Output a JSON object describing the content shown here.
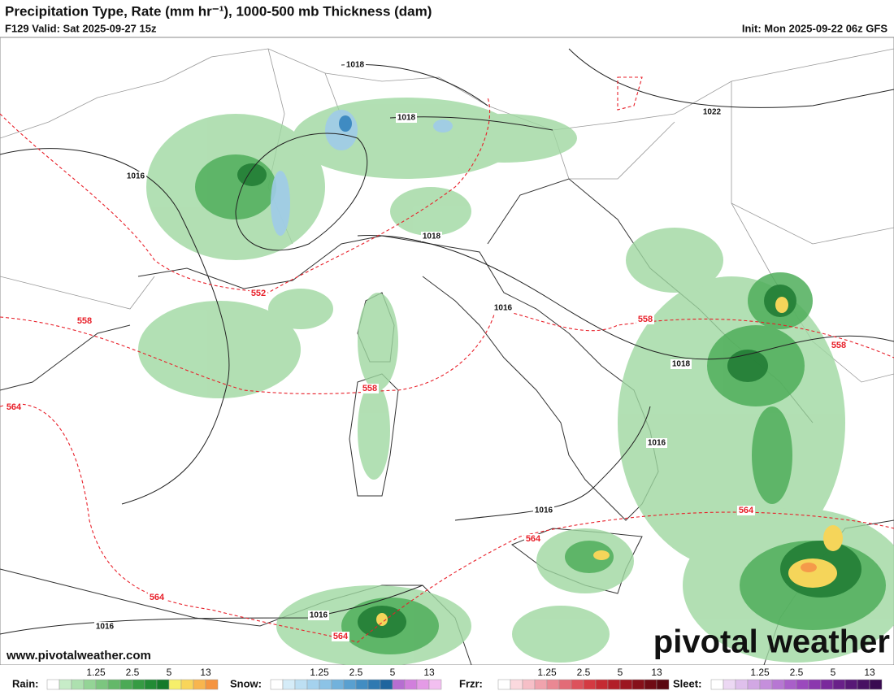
{
  "header": {
    "title": "Precipitation Type, Rate (mm hr⁻¹), 1000-500 mb Thickness (dam)",
    "valid": "F129 Valid: Sat 2025-09-27 15z",
    "init": "Init: Mon 2025-09-22 06z GFS"
  },
  "map": {
    "pressure_labels": [
      "1018",
      "1018",
      "1022",
      "1016",
      "1018",
      "1016",
      "1018",
      "1016",
      "1016",
      "1016",
      "1016"
    ],
    "thickness_labels": [
      "552",
      "558",
      "558",
      "558",
      "558",
      "564",
      "564",
      "564",
      "564",
      "564"
    ]
  },
  "watermark": "pivotal weather",
  "site": "www.pivotalweather.com",
  "legend": [
    {
      "label": "Rain:",
      "ticks": [
        "1.25",
        "2.5",
        "5",
        "13"
      ]
    },
    {
      "label": "Snow:",
      "ticks": [
        "1.25",
        "2.5",
        "5",
        "13"
      ]
    },
    {
      "label": "Frzr:",
      "ticks": [
        "1.25",
        "2.5",
        "5",
        "13"
      ]
    },
    {
      "label": "Sleet:",
      "ticks": [
        "1.25",
        "2.5",
        "5",
        "13"
      ]
    }
  ]
}
